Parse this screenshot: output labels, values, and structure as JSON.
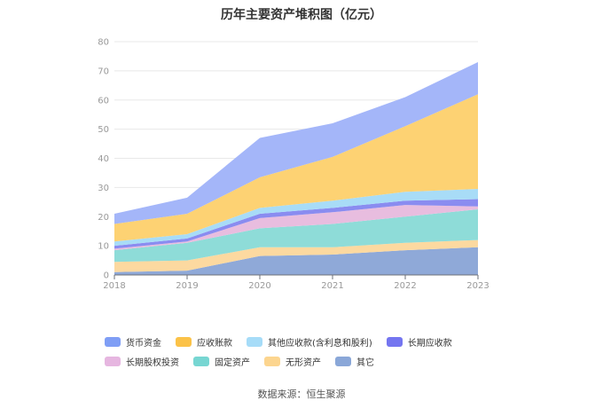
{
  "title": "历年主要资产堆积图（亿元）",
  "source": "数据来源：恒生聚源",
  "chart_data": {
    "type": "area",
    "stacked": true,
    "categories": [
      "2018",
      "2019",
      "2020",
      "2021",
      "2022",
      "2023"
    ],
    "ylim": [
      0,
      80
    ],
    "yticks": [
      0,
      10,
      20,
      30,
      40,
      50,
      60,
      70,
      80
    ],
    "grid": true,
    "legend_position": "bottom",
    "series": [
      {
        "name": "其它",
        "color": "#8fa9d8",
        "values": [
          1.0,
          1.5,
          6.5,
          7.0,
          8.5,
          9.5
        ]
      },
      {
        "name": "无形资产",
        "color": "#fcd9a0",
        "values": [
          3.5,
          3.5,
          3.0,
          2.5,
          2.5,
          2.5
        ]
      },
      {
        "name": "固定资产",
        "color": "#8edcd8",
        "values": [
          4.0,
          6.0,
          6.5,
          8.0,
          9.0,
          10.5
        ]
      },
      {
        "name": "长期股权投资",
        "color": "#e8bddf",
        "values": [
          0.5,
          0.5,
          3.5,
          4.0,
          4.0,
          1.0
        ]
      },
      {
        "name": "长期应收款",
        "color": "#8a8cf0",
        "values": [
          1.0,
          1.0,
          1.5,
          1.5,
          1.5,
          2.5
        ]
      },
      {
        "name": "其他应收款(含利息和股利)",
        "color": "#a8dcf7",
        "values": [
          1.5,
          1.5,
          2.0,
          2.5,
          3.0,
          3.5
        ]
      },
      {
        "name": "应收账款",
        "color": "#fdd273",
        "values": [
          6.0,
          7.0,
          10.5,
          15.0,
          22.5,
          32.5
        ]
      },
      {
        "name": "货币资金",
        "color": "#a4b6f9",
        "values": [
          3.5,
          5.5,
          13.5,
          11.5,
          10.0,
          11.0
        ]
      }
    ]
  },
  "legend": [
    {
      "label": "货币资金",
      "color": "#7f9ef5"
    },
    {
      "label": "应收账款",
      "color": "#fbc248"
    },
    {
      "label": "其他应收款(含利息和股利)",
      "color": "#a6dcf8"
    },
    {
      "label": "长期应收款",
      "color": "#7475f0"
    },
    {
      "label": "长期股权投资",
      "color": "#e6b6e0"
    },
    {
      "label": "固定资产",
      "color": "#77d6d2"
    },
    {
      "label": "无形资产",
      "color": "#fcd58f"
    },
    {
      "label": "其它",
      "color": "#8aa7d8"
    }
  ]
}
